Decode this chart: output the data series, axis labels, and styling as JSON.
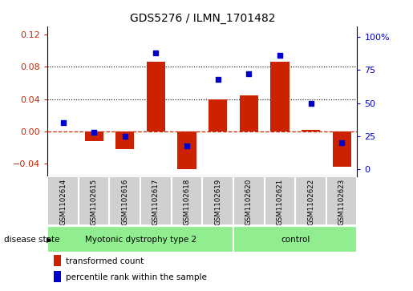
{
  "title": "GDS5276 / ILMN_1701482",
  "samples": [
    "GSM1102614",
    "GSM1102615",
    "GSM1102616",
    "GSM1102617",
    "GSM1102618",
    "GSM1102619",
    "GSM1102620",
    "GSM1102621",
    "GSM1102622",
    "GSM1102623"
  ],
  "transformed_count": [
    0.0,
    -0.012,
    -0.022,
    0.086,
    -0.046,
    0.04,
    0.045,
    0.086,
    0.002,
    -0.044
  ],
  "percentile_rank": [
    35,
    28,
    25,
    88,
    18,
    68,
    72,
    86,
    50,
    20
  ],
  "groups": [
    {
      "label": "Myotonic dystrophy type 2",
      "start": 0,
      "end": 6,
      "color": "#90ee90"
    },
    {
      "label": "control",
      "start": 6,
      "end": 10,
      "color": "#90ee90"
    }
  ],
  "disease_state_label": "disease state",
  "ylim_left": [
    -0.055,
    0.13
  ],
  "ylim_right": [
    -5,
    108
  ],
  "yticks_left": [
    -0.04,
    0.0,
    0.04,
    0.08,
    0.12
  ],
  "yticks_right": [
    0,
    25,
    50,
    75,
    100
  ],
  "bar_color": "#cc2200",
  "scatter_color": "#0000cc",
  "legend_bar_label": "transformed count",
  "legend_scatter_label": "percentile rank within the sample",
  "background_color": "#ffffff",
  "plot_bg_color": "#ffffff",
  "zero_line_color": "#cc2200",
  "dotted_line_yticks": [
    0.04,
    0.08
  ],
  "sample_box_color": "#d0d0d0",
  "group_box_color": "#90ee90"
}
